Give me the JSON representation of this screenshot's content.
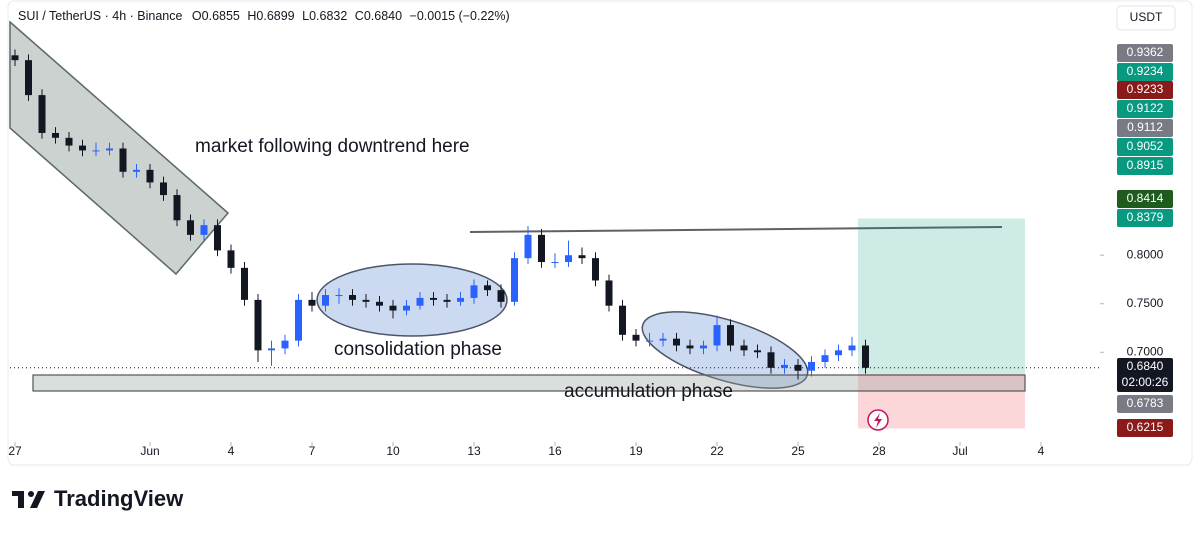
{
  "chart_data": {
    "type": "candlestick",
    "header": {
      "symbol": "SUI / TetherUS · 4h · Binance",
      "ohlc": [
        {
          "key": "O",
          "value": "0.6855"
        },
        {
          "key": "H",
          "value": "0.6899"
        },
        {
          "key": "L",
          "value": "0.6832"
        },
        {
          "key": "C",
          "value": "0.6840"
        }
      ],
      "change": "−0.0015 (−0.22%)"
    },
    "currency": "USDT",
    "annotations": [
      "market following downtrend here",
      "consolidation phase",
      "accumulation phase"
    ],
    "up_color": "#2962ff",
    "down_color": "#131722",
    "x": [
      0,
      0.5,
      1,
      1.5,
      2,
      2.5,
      3,
      3.5,
      4,
      4.5,
      5,
      5.5,
      6,
      6.5,
      7,
      7.5,
      8,
      8.5,
      9,
      9.5,
      10,
      10.5,
      11,
      11.5,
      12,
      12.5,
      13,
      13.5,
      14,
      14.5,
      15,
      15.5,
      16,
      16.5,
      17,
      17.5,
      18,
      18.5,
      19,
      19.5,
      20,
      20.5,
      21,
      21.5,
      22,
      22.5,
      23,
      23.5,
      24,
      24.5,
      25,
      25.5,
      26,
      26.5,
      27,
      27.5,
      28,
      28.5,
      29,
      29.5,
      30,
      30.5,
      31,
      31.5
    ],
    "candles": [
      [
        1.006,
        1.012,
        0.995,
        1.001
      ],
      [
        1.001,
        1.007,
        0.959,
        0.965
      ],
      [
        0.965,
        0.971,
        0.92,
        0.926
      ],
      [
        0.926,
        0.932,
        0.915,
        0.921
      ],
      [
        0.921,
        0.927,
        0.907,
        0.913
      ],
      [
        0.913,
        0.919,
        0.902,
        0.908
      ],
      [
        0.908,
        0.916,
        0.902,
        0.908
      ],
      [
        0.908,
        0.916,
        0.903,
        0.91
      ],
      [
        0.91,
        0.916,
        0.88,
        0.886
      ],
      [
        0.886,
        0.894,
        0.88,
        0.888
      ],
      [
        0.888,
        0.894,
        0.869,
        0.875
      ],
      [
        0.875,
        0.881,
        0.856,
        0.862
      ],
      [
        0.862,
        0.868,
        0.83,
        0.836
      ],
      [
        0.836,
        0.842,
        0.815,
        0.821
      ],
      [
        0.821,
        0.837,
        0.815,
        0.831
      ],
      [
        0.831,
        0.837,
        0.799,
        0.805
      ],
      [
        0.805,
        0.811,
        0.781,
        0.787
      ],
      [
        0.787,
        0.793,
        0.748,
        0.754
      ],
      [
        0.754,
        0.76,
        0.69,
        0.702
      ],
      [
        0.702,
        0.712,
        0.686,
        0.704
      ],
      [
        0.704,
        0.718,
        0.698,
        0.712
      ],
      [
        0.712,
        0.76,
        0.706,
        0.754
      ],
      [
        0.754,
        0.762,
        0.742,
        0.748
      ],
      [
        0.748,
        0.765,
        0.742,
        0.759
      ],
      [
        0.759,
        0.766,
        0.75,
        0.759
      ],
      [
        0.759,
        0.765,
        0.748,
        0.754
      ],
      [
        0.754,
        0.76,
        0.746,
        0.752
      ],
      [
        0.752,
        0.758,
        0.742,
        0.748
      ],
      [
        0.748,
        0.754,
        0.735,
        0.743
      ],
      [
        0.743,
        0.754,
        0.738,
        0.748
      ],
      [
        0.748,
        0.762,
        0.744,
        0.756
      ],
      [
        0.756,
        0.762,
        0.748,
        0.754
      ],
      [
        0.754,
        0.76,
        0.746,
        0.752
      ],
      [
        0.752,
        0.762,
        0.748,
        0.756
      ],
      [
        0.756,
        0.775,
        0.75,
        0.769
      ],
      [
        0.769,
        0.774,
        0.758,
        0.764
      ],
      [
        0.764,
        0.77,
        0.746,
        0.752
      ],
      [
        0.752,
        0.803,
        0.748,
        0.797
      ],
      [
        0.797,
        0.83,
        0.791,
        0.821
      ],
      [
        0.821,
        0.827,
        0.787,
        0.793
      ],
      [
        0.793,
        0.802,
        0.787,
        0.793
      ],
      [
        0.793,
        0.815,
        0.788,
        0.8
      ],
      [
        0.8,
        0.808,
        0.791,
        0.797
      ],
      [
        0.797,
        0.803,
        0.768,
        0.774
      ],
      [
        0.774,
        0.78,
        0.742,
        0.748
      ],
      [
        0.748,
        0.754,
        0.712,
        0.718
      ],
      [
        0.718,
        0.724,
        0.706,
        0.712
      ],
      [
        0.712,
        0.72,
        0.706,
        0.712
      ],
      [
        0.712,
        0.72,
        0.706,
        0.714
      ],
      [
        0.714,
        0.72,
        0.701,
        0.707
      ],
      [
        0.707,
        0.713,
        0.698,
        0.704
      ],
      [
        0.704,
        0.712,
        0.698,
        0.707
      ],
      [
        0.707,
        0.738,
        0.701,
        0.728
      ],
      [
        0.728,
        0.734,
        0.701,
        0.707
      ],
      [
        0.707,
        0.713,
        0.696,
        0.702
      ],
      [
        0.702,
        0.708,
        0.694,
        0.7
      ],
      [
        0.7,
        0.706,
        0.678,
        0.684
      ],
      [
        0.684,
        0.693,
        0.678,
        0.687
      ],
      [
        0.687,
        0.693,
        0.672,
        0.681
      ],
      [
        0.681,
        0.696,
        0.675,
        0.69
      ],
      [
        0.69,
        0.703,
        0.684,
        0.697
      ],
      [
        0.697,
        0.708,
        0.691,
        0.702
      ],
      [
        0.702,
        0.716,
        0.696,
        0.707
      ],
      [
        0.707,
        0.713,
        0.678,
        0.684
      ]
    ],
    "xlim": [
      -0.185,
      40.185
    ],
    "xticks": [
      {
        "value": 0,
        "label": "27"
      },
      {
        "value": 5,
        "label": "Jun"
      },
      {
        "value": 8,
        "label": "4"
      },
      {
        "value": 11,
        "label": "7"
      },
      {
        "value": 14,
        "label": "10"
      },
      {
        "value": 17,
        "label": "13"
      },
      {
        "value": 20,
        "label": "16"
      },
      {
        "value": 23,
        "label": "19"
      },
      {
        "value": 26,
        "label": "22"
      },
      {
        "value": 29,
        "label": "25"
      },
      {
        "value": 32,
        "label": "28"
      },
      {
        "value": 35,
        "label": "Jul"
      },
      {
        "value": 38,
        "label": "4"
      }
    ],
    "ylim": [
      0.589,
      1.063
    ],
    "yticks": [
      {
        "value": 0.7,
        "label": "0.7000"
      },
      {
        "value": 0.75,
        "label": "0.7500"
      },
      {
        "value": 0.8,
        "label": "0.8000"
      }
    ],
    "price_labels": [
      {
        "value": 0.9362,
        "label": "0.9362",
        "color": "#787b86"
      },
      {
        "value": 0.9234,
        "label": "0.9234",
        "color": "#089981"
      },
      {
        "value": 0.9233,
        "label": "0.9233",
        "color": "#8b1a1a"
      },
      {
        "value": 0.9122,
        "label": "0.9122",
        "color": "#089981"
      },
      {
        "value": 0.9112,
        "label": "0.9112",
        "color": "#787b86"
      },
      {
        "value": 0.9052,
        "label": "0.9052",
        "color": "#089981"
      },
      {
        "value": 0.8915,
        "label": "0.8915",
        "color": "#089981"
      },
      {
        "value": 0.8414,
        "label": "0.8414",
        "color": "#1e5c1e"
      },
      {
        "value": 0.8379,
        "label": "0.8379",
        "color": "#089981"
      },
      {
        "value": 0.684,
        "label": "0.6840",
        "color": "#131722"
      },
      {
        "value": 0.6783,
        "label": "0.6783",
        "color": "#787b86"
      },
      {
        "value": 0.6215,
        "label": "0.6215",
        "color": "#8b1a1a"
      }
    ],
    "countdown": "02:00:26",
    "brand": "TradingView"
  }
}
